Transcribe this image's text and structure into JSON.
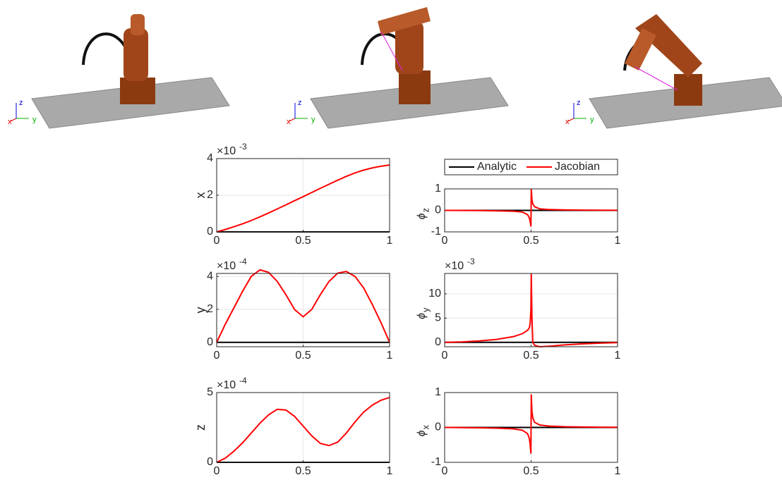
{
  "scenes": [
    {
      "axes": [
        "x",
        "y",
        "z"
      ]
    },
    {
      "axes": [
        "x",
        "y",
        "z"
      ]
    },
    {
      "axes": [
        "x",
        "y",
        "z"
      ]
    }
  ],
  "chart_data": [
    {
      "type": "line",
      "ylabel": "x",
      "multiplier": "×10",
      "multiplier_exponent": "-3",
      "x": [
        0,
        0.05,
        0.1,
        0.15,
        0.2,
        0.25,
        0.3,
        0.35,
        0.4,
        0.45,
        0.5,
        0.55,
        0.6,
        0.65,
        0.7,
        0.75,
        0.8,
        0.85,
        0.9,
        0.95,
        1
      ],
      "series": [
        {
          "color": "#000000",
          "values": [
            0,
            0,
            0,
            0,
            0,
            0,
            0,
            0,
            0,
            0,
            0,
            0,
            0,
            0,
            0,
            0,
            0,
            0,
            0,
            0,
            0
          ]
        },
        {
          "color": "#ff0000",
          "values": [
            0,
            0.13,
            0.28,
            0.44,
            0.62,
            0.82,
            1.03,
            1.25,
            1.47,
            1.7,
            1.92,
            2.15,
            2.38,
            2.6,
            2.82,
            3.03,
            3.22,
            3.37,
            3.49,
            3.58,
            3.65
          ]
        }
      ],
      "xlim": [
        0,
        1
      ],
      "xticks": [
        0,
        0.5,
        1
      ],
      "ylim": [
        0,
        4
      ],
      "yticks": [
        0,
        2,
        4
      ],
      "grid": true
    },
    {
      "type": "line",
      "ylabel": "ϕ",
      "ylabel_subscript": "z",
      "legend": true,
      "x": [
        0,
        0.1,
        0.2,
        0.3,
        0.4,
        0.45,
        0.48,
        0.49,
        0.495,
        0.499,
        0.501,
        0.505,
        0.51,
        0.52,
        0.55,
        0.6,
        0.7,
        0.8,
        0.9,
        1
      ],
      "series": [
        {
          "name": "Analytic",
          "color": "#000000",
          "values": [
            0,
            0,
            0,
            0,
            0,
            0,
            0,
            0,
            0,
            0,
            0,
            0,
            0,
            0,
            0,
            0,
            0,
            0,
            0,
            0
          ]
        },
        {
          "name": "Jacobian",
          "color": "#ff0000",
          "values": [
            0,
            -0.005,
            -0.01,
            -0.02,
            -0.04,
            -0.08,
            -0.2,
            -0.35,
            -0.55,
            -0.75,
            1,
            0.5,
            0.3,
            0.17,
            0.07,
            0.04,
            0.02,
            0.012,
            0.008,
            0.005
          ]
        }
      ],
      "xlim": [
        0,
        1
      ],
      "xticks": [
        0,
        0.5,
        1
      ],
      "ylim": [
        -1,
        1
      ],
      "yticks": [
        -1,
        0,
        1
      ],
      "grid": true
    },
    {
      "type": "line",
      "ylabel": "y",
      "multiplier": "×10",
      "multiplier_exponent": "-4",
      "x": [
        0,
        0.05,
        0.1,
        0.15,
        0.2,
        0.25,
        0.3,
        0.35,
        0.4,
        0.45,
        0.5,
        0.55,
        0.6,
        0.65,
        0.7,
        0.75,
        0.8,
        0.85,
        0.9,
        0.95,
        1
      ],
      "series": [
        {
          "color": "#000000",
          "values": [
            0,
            0,
            0,
            0,
            0,
            0,
            0,
            0,
            0,
            0,
            0,
            0,
            0,
            0,
            0,
            0,
            0,
            0,
            0,
            0,
            0
          ]
        },
        {
          "color": "#ff0000",
          "values": [
            0,
            1.1,
            2.1,
            3.1,
            4.0,
            4.4,
            4.25,
            3.7,
            2.9,
            2.0,
            1.55,
            2.0,
            2.9,
            3.7,
            4.2,
            4.3,
            4.0,
            3.3,
            2.3,
            1.2,
            0
          ]
        }
      ],
      "xlim": [
        0,
        1
      ],
      "xticks": [
        0,
        0.5,
        1
      ],
      "ylim": [
        -0.27,
        4.18
      ],
      "yticks": [
        0,
        2,
        4
      ],
      "grid": true
    },
    {
      "type": "line",
      "ylabel": "ϕ",
      "ylabel_subscript": "y",
      "multiplier": "×10",
      "multiplier_exponent": "-3",
      "x": [
        0,
        0.1,
        0.2,
        0.3,
        0.4,
        0.45,
        0.48,
        0.49,
        0.495,
        0.499,
        0.501,
        0.505,
        0.51,
        0.52,
        0.55,
        0.6,
        0.7,
        0.8,
        0.9,
        1
      ],
      "series": [
        {
          "color": "#000000",
          "values": [
            0,
            0,
            0,
            0,
            0,
            0,
            0,
            0,
            0,
            0,
            0,
            0,
            0,
            0,
            0,
            0,
            0,
            0,
            0,
            0
          ]
        },
        {
          "color": "#ff0000",
          "values": [
            0,
            0.1,
            0.3,
            0.6,
            1.2,
            1.8,
            2.5,
            3,
            4,
            7,
            14.2,
            5,
            0,
            -0.6,
            -0.9,
            -0.8,
            -0.5,
            -0.3,
            -0.15,
            -0.05
          ]
        }
      ],
      "xlim": [
        0,
        1
      ],
      "xticks": [
        0,
        0.5,
        1
      ],
      "ylim": [
        -0.9,
        14.2
      ],
      "yticks": [
        0,
        5,
        10
      ],
      "grid": true
    },
    {
      "type": "line",
      "ylabel": "z",
      "multiplier": "×10",
      "multiplier_exponent": "-4",
      "x": [
        0,
        0.05,
        0.1,
        0.15,
        0.2,
        0.25,
        0.3,
        0.35,
        0.4,
        0.45,
        0.5,
        0.55,
        0.6,
        0.65,
        0.7,
        0.75,
        0.8,
        0.85,
        0.9,
        0.95,
        1
      ],
      "series": [
        {
          "color": "#000000",
          "values": [
            0,
            0,
            0,
            0,
            0,
            0,
            0,
            0,
            0,
            0,
            0,
            0,
            0,
            0,
            0,
            0,
            0,
            0,
            0,
            0,
            0
          ]
        },
        {
          "color": "#ff0000",
          "values": [
            0,
            0.3,
            0.8,
            1.4,
            2.1,
            2.8,
            3.4,
            3.8,
            3.75,
            3.3,
            2.6,
            1.9,
            1.35,
            1.2,
            1.45,
            2.1,
            2.9,
            3.6,
            4.1,
            4.45,
            4.65
          ]
        }
      ],
      "xlim": [
        0,
        1
      ],
      "xticks": [
        0,
        0.5,
        1
      ],
      "ylim": [
        0,
        5
      ],
      "yticks": [
        0,
        5
      ],
      "grid": true
    },
    {
      "type": "line",
      "ylabel": "ϕ",
      "ylabel_subscript": "x",
      "x": [
        0,
        0.1,
        0.2,
        0.3,
        0.4,
        0.45,
        0.48,
        0.49,
        0.495,
        0.499,
        0.501,
        0.505,
        0.51,
        0.52,
        0.55,
        0.6,
        0.7,
        0.8,
        0.9,
        1
      ],
      "series": [
        {
          "color": "#000000",
          "values": [
            0,
            0,
            0,
            0,
            0,
            0,
            0,
            0,
            0,
            0,
            0,
            0,
            0,
            0,
            0,
            0,
            0,
            0,
            0,
            0
          ]
        },
        {
          "color": "#ff0000",
          "values": [
            0,
            -0.005,
            -0.01,
            -0.02,
            -0.04,
            -0.08,
            -0.18,
            -0.32,
            -0.5,
            -0.75,
            0.95,
            0.45,
            0.27,
            0.15,
            0.07,
            0.04,
            0.02,
            0.012,
            0.008,
            0.005
          ]
        }
      ],
      "xlim": [
        0,
        1
      ],
      "xticks": [
        0,
        0.5,
        1
      ],
      "ylim": [
        -1,
        1
      ],
      "yticks": [
        -1,
        0,
        1
      ],
      "grid": true
    }
  ]
}
